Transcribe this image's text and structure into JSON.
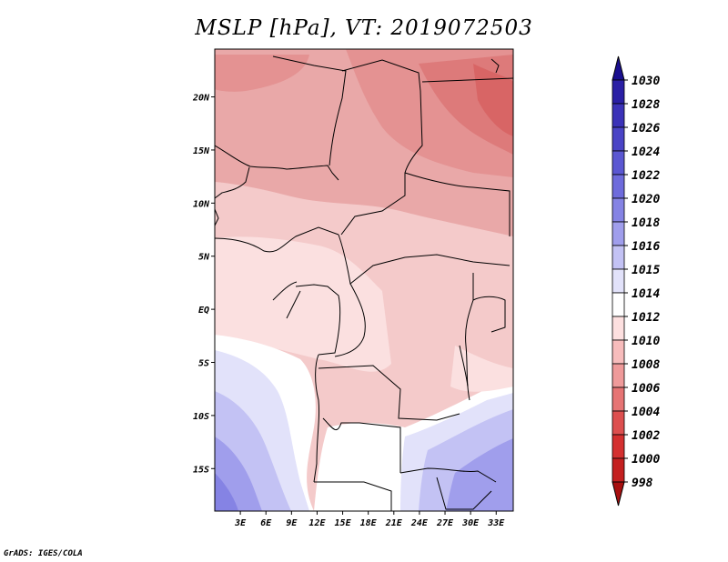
{
  "title": "MSLP [hPa], VT: 2019072503",
  "credit": "GrADS: IGES/COLA",
  "map": {
    "lat_labels": [
      "20N",
      "15N",
      "10N",
      "5N",
      "EQ",
      "5S",
      "10S",
      "15S"
    ],
    "lat_values": [
      20,
      15,
      10,
      5,
      0,
      -5,
      -10,
      -15
    ],
    "lon_labels": [
      "3E",
      "6E",
      "9E",
      "12E",
      "15E",
      "18E",
      "21E",
      "24E",
      "27E",
      "30E",
      "33E"
    ],
    "lon_values": [
      3,
      6,
      9,
      12,
      15,
      18,
      21,
      24,
      27,
      30,
      33
    ],
    "lon_range": [
      0,
      35
    ],
    "lat_range": [
      -19,
      24.5
    ]
  },
  "colorbar": {
    "labels": [
      "1030",
      "1028",
      "1026",
      "1024",
      "1022",
      "1020",
      "1018",
      "1016",
      "1015",
      "1014",
      "1012",
      "1010",
      "1008",
      "1006",
      "1004",
      "1002",
      "1000",
      "998"
    ],
    "colors": [
      "#1a0f8f",
      "#2a1fa5",
      "#3b32b8",
      "#4a44c6",
      "#5b57d2",
      "#6e6bdc",
      "#8583e4",
      "#a09eec",
      "#c3c2f4",
      "#e2e2fa",
      "#ffffff",
      "#fde0e0",
      "#f7bcbc",
      "#ef9a9a",
      "#e67474",
      "#dd4f4f",
      "#d43030",
      "#c42020",
      "#a81010"
    ]
  }
}
